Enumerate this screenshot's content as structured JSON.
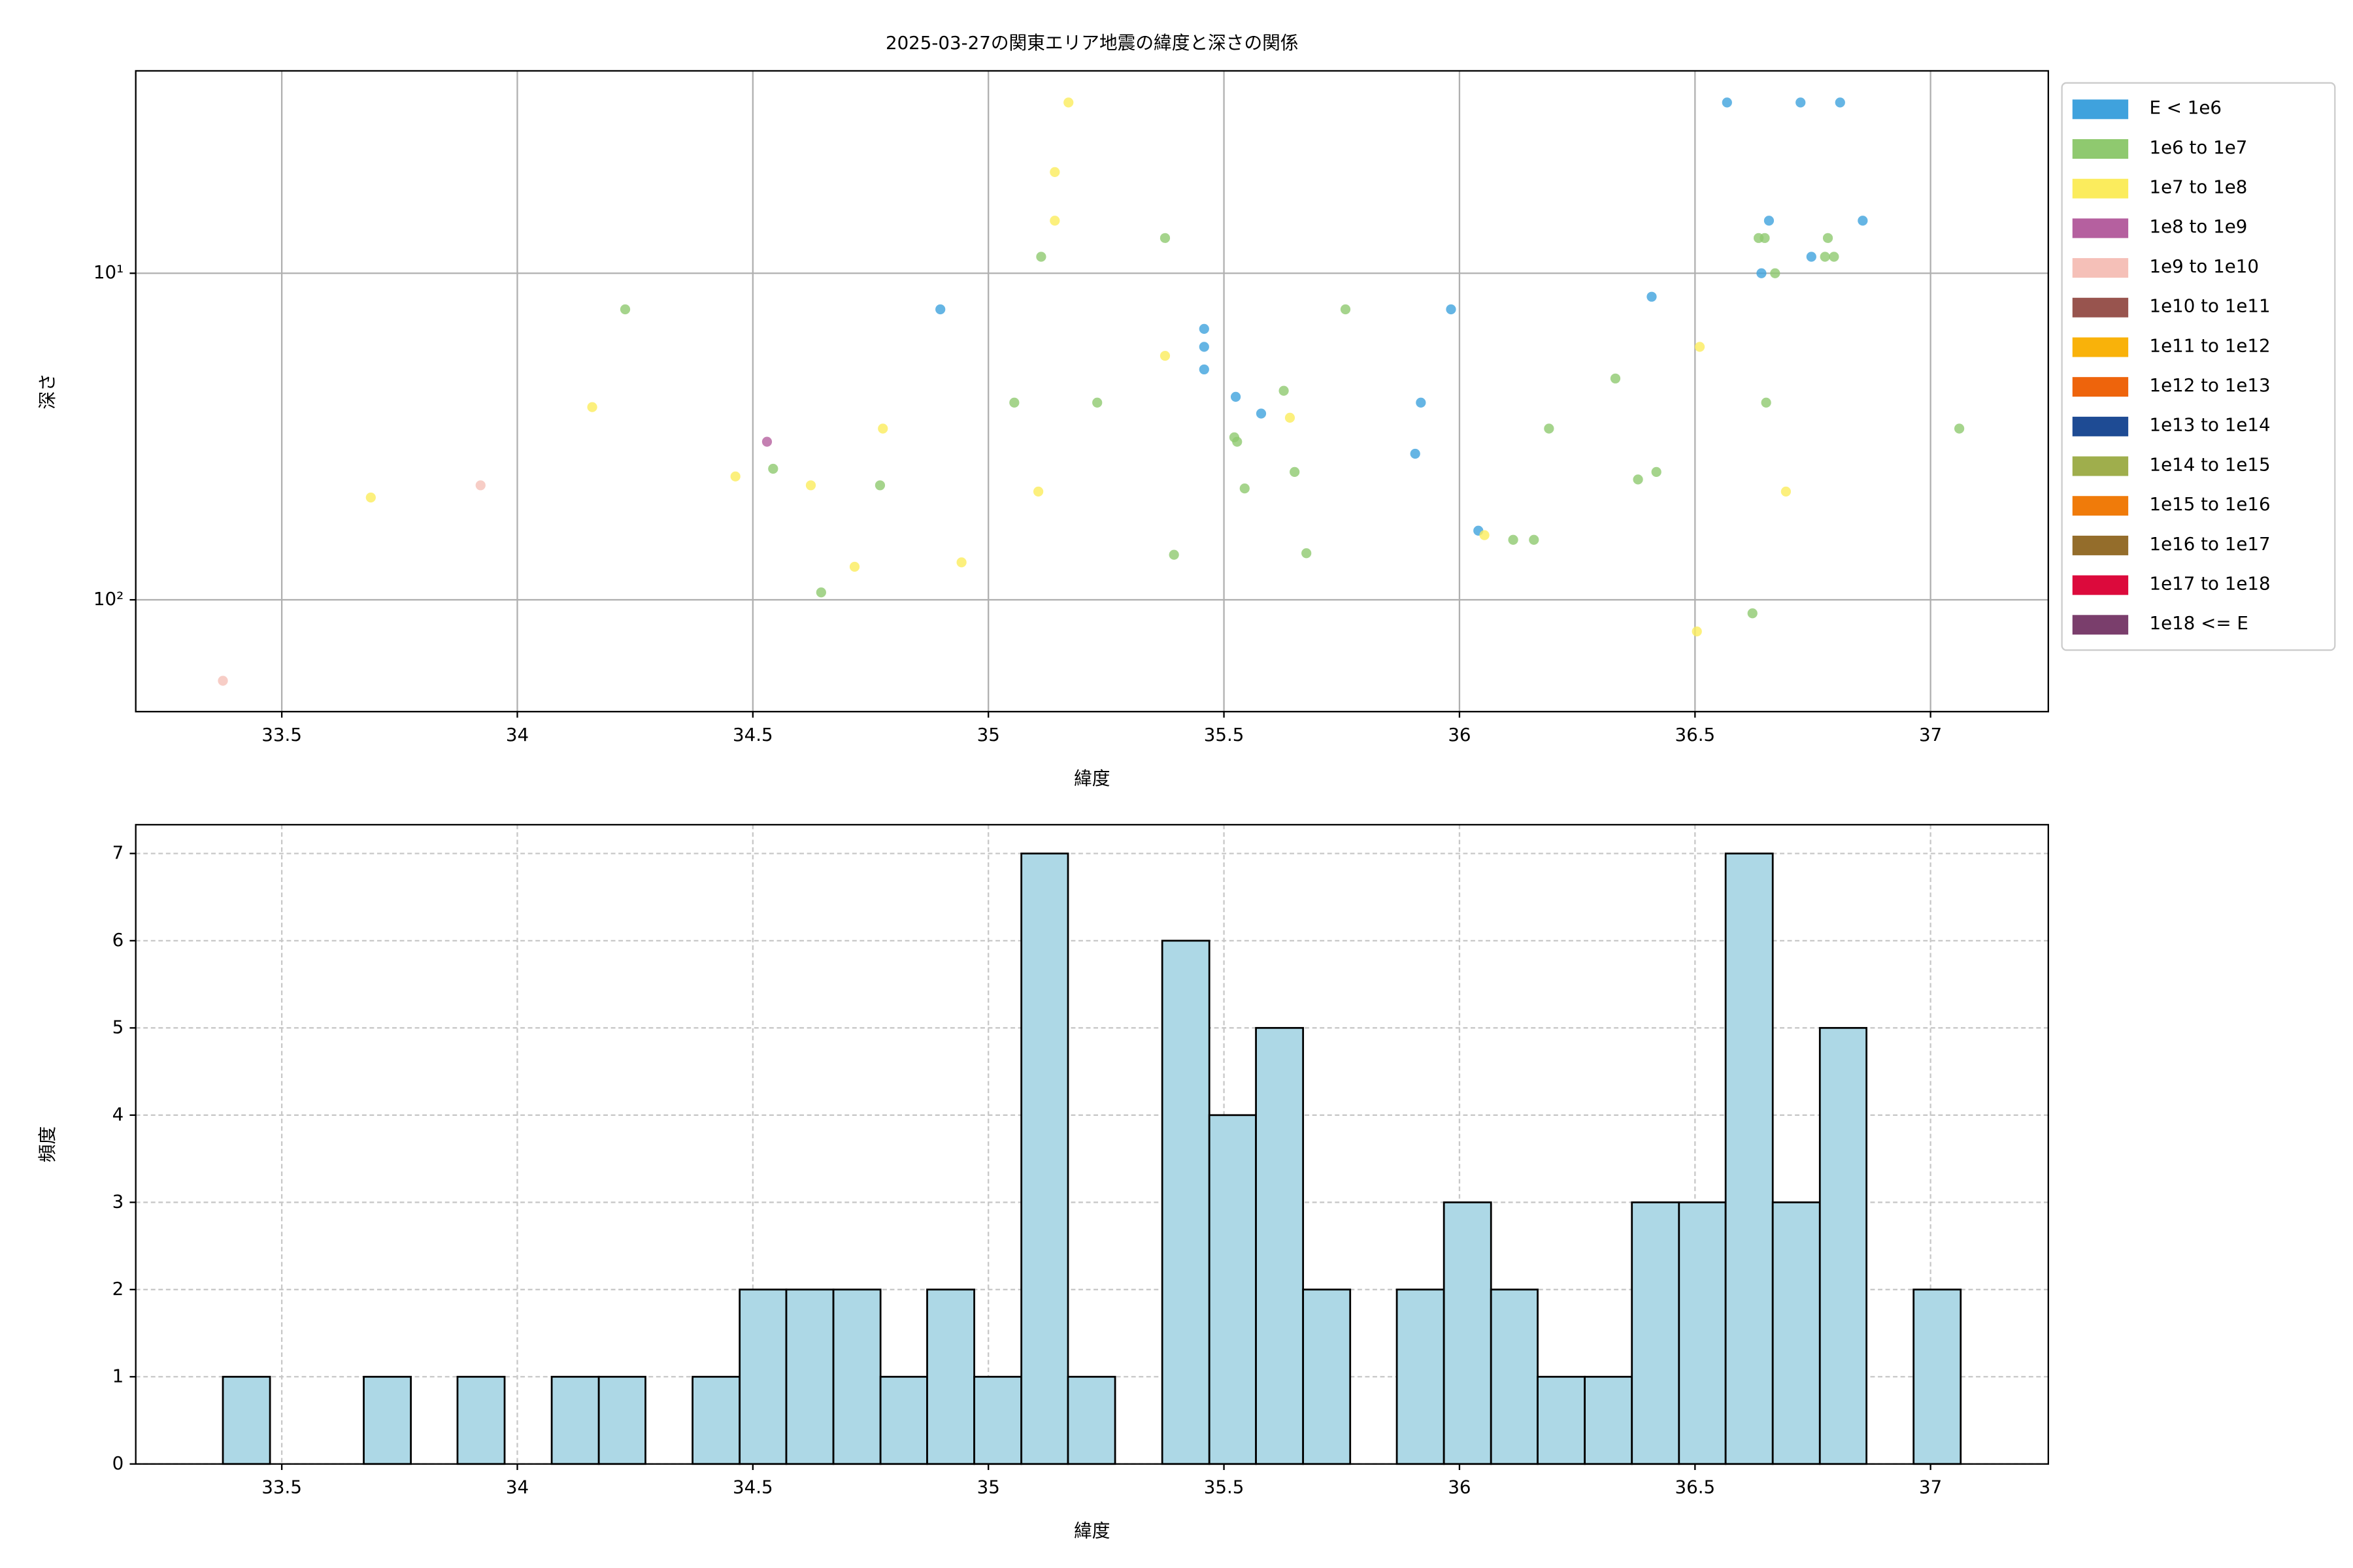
{
  "chart_data": [
    {
      "type": "scatter",
      "title": "2025-03-27の関東エリア地震の緯度と深さの関係",
      "x_label": "緯度",
      "y_label": "深さ",
      "xlim": [
        33.19,
        37.25
      ],
      "xticks": [
        33.5,
        34.0,
        34.5,
        35.0,
        35.5,
        36.0,
        36.5,
        37.0
      ],
      "ylim": [
        220,
        2.4
      ],
      "y_scale": "log",
      "yticks": [
        {
          "value": 10,
          "label": "10¹"
        },
        {
          "value": 100,
          "label": "10²"
        }
      ],
      "grid": true,
      "legend": "outside upper right",
      "series": [
        {
          "name": "E < 1e6",
          "color": "#3fa2dd",
          "x": [
            36.568,
            36.724,
            36.808,
            36.657,
            36.641,
            36.747,
            36.856,
            36.408,
            34.898,
            35.982,
            35.458,
            35.458,
            35.458,
            35.525,
            35.579,
            35.918,
            35.906,
            36.04
          ],
          "values": [
            3,
            3,
            3,
            6.9,
            10,
            8.9,
            6.9,
            11.8,
            12.9,
            12.9,
            14.8,
            16.8,
            19.7,
            23.9,
            26.9,
            24.9,
            35.7,
            61.4
          ]
        },
        {
          "name": "1e6 to 1e7",
          "color": "#8fc96f",
          "x": [
            34.229,
            35.112,
            35.375,
            36.648,
            36.635,
            36.782,
            36.776,
            36.795,
            36.67,
            35.758,
            36.331,
            35.627,
            35.055,
            35.231,
            36.651,
            36.19,
            37.061,
            35.522,
            35.528,
            34.543,
            35.65,
            36.418,
            36.379,
            34.77,
            35.544,
            36.114,
            36.158,
            35.394,
            35.675,
            34.645,
            36.622
          ],
          "values": [
            12.9,
            8.9,
            7.8,
            7.8,
            7.8,
            7.8,
            8.9,
            8.9,
            10,
            12.9,
            21,
            22.9,
            24.9,
            24.9,
            24.9,
            29.9,
            29.9,
            31.8,
            32.8,
            39.7,
            40.6,
            40.6,
            42.8,
            44.6,
            45.6,
            65.5,
            65.5,
            72.8,
            72,
            94.9,
            110
          ]
        },
        {
          "name": "1e7 to 1e8",
          "color": "#fbec5d",
          "x": [
            35.17,
            35.141,
            35.141,
            35.375,
            34.159,
            34.776,
            34.463,
            34.623,
            35.106,
            36.51,
            35.64,
            33.689,
            36.053,
            36.693,
            34.716,
            34.943,
            36.504
          ],
          "values": [
            3,
            4.9,
            6.9,
            17.9,
            25.7,
            29.9,
            41.9,
            44.6,
            46.6,
            16.8,
            27.7,
            48.6,
            63.4,
            46.6,
            79.2,
            76.8,
            125
          ]
        },
        {
          "name": "1e8 to 1e9",
          "color": "#b5609f",
          "x": [
            34.53
          ],
          "values": [
            32.8
          ]
        },
        {
          "name": "1e9 to 1e10",
          "color": "#f5c0b8",
          "x": [
            33.922,
            33.375
          ],
          "values": [
            44.6,
            177
          ]
        },
        {
          "name": "1e10 to 1e11",
          "color": "#98544e",
          "x": [],
          "values": []
        },
        {
          "name": "1e11 to 1e12",
          "color": "#f9b20a",
          "x": [],
          "values": []
        },
        {
          "name": "1e12 to 1e13",
          "color": "#ee640c",
          "x": [],
          "values": []
        },
        {
          "name": "1e13 to 1e14",
          "color": "#1e4b94",
          "x": [],
          "values": []
        },
        {
          "name": "1e14 to 1e15",
          "color": "#9fae4c",
          "x": [],
          "values": []
        },
        {
          "name": "1e15 to 1e16",
          "color": "#f07b0a",
          "x": [],
          "values": []
        },
        {
          "name": "1e16 to 1e17",
          "color": "#946d2b",
          "x": [],
          "values": []
        },
        {
          "name": "1e17 to 1e18",
          "color": "#dc0a3c",
          "x": [],
          "values": []
        },
        {
          "name": "1e18 <= E",
          "color": "#7a3e6c",
          "x": [],
          "values": []
        }
      ]
    },
    {
      "type": "histogram",
      "x_label": "緯度",
      "y_label": "頻度",
      "xlim": [
        33.19,
        37.25
      ],
      "xticks": [
        33.5,
        34.0,
        34.5,
        35.0,
        35.5,
        36.0,
        36.5,
        37.0
      ],
      "ylim": [
        0,
        7.33
      ],
      "yticks": [
        0,
        1,
        2,
        3,
        4,
        5,
        6,
        7
      ],
      "grid": true,
      "color": "#add8e6",
      "bins": [
        33.375,
        33.475,
        33.574,
        33.674,
        33.774,
        33.873,
        33.973,
        34.073,
        34.173,
        34.272,
        34.372,
        34.472,
        34.571,
        34.671,
        34.771,
        34.87,
        34.97,
        35.07,
        35.169,
        35.269,
        35.369,
        35.469,
        35.568,
        35.668,
        35.768,
        35.867,
        35.967,
        36.067,
        36.166,
        36.266,
        36.366,
        36.466,
        36.565,
        36.665,
        36.765,
        36.864,
        36.964,
        37.064
      ],
      "values": [
        1,
        0,
        0,
        1,
        0,
        1,
        0,
        1,
        1,
        0,
        1,
        2,
        2,
        2,
        1,
        2,
        1,
        7,
        1,
        0,
        6,
        4,
        5,
        2,
        0,
        2,
        3,
        2,
        1,
        1,
        3,
        3,
        7,
        3,
        5,
        0,
        2
      ]
    }
  ]
}
